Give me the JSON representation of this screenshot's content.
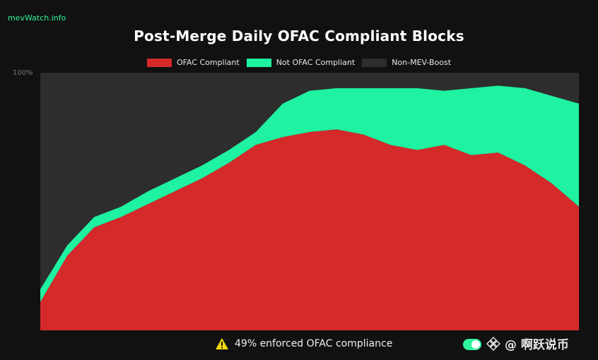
{
  "brand": "mevWatch.info",
  "footer": {
    "compliance_text": "49% enforced OFAC compliance",
    "watermark": "@ 啊跃说币"
  },
  "colors": {
    "ofac": "#d42a2a",
    "not_ofac": "#1ff2a0",
    "non_mev": "#2d2d2d",
    "background": "#111111",
    "accent": "#2ef39b",
    "warning": "#f5d90a"
  },
  "chart_data": {
    "type": "area",
    "stacked": true,
    "title": "Post-Merge Daily OFAC Compliant Blocks",
    "ylabel": "",
    "xlabel": "",
    "ylim": [
      0,
      100
    ],
    "y_tick_labels": [
      "100%"
    ],
    "grid": false,
    "legend_position": "top",
    "x": [
      0,
      10,
      20,
      30,
      40,
      50,
      60,
      70,
      80,
      90,
      100,
      110,
      120,
      130,
      140,
      150,
      160,
      170,
      180,
      190,
      200
    ],
    "series": [
      {
        "name": "OFAC Compliant",
        "color": "#d42a2a",
        "values": [
          11,
          29,
          40,
          44,
          49,
          54,
          59,
          65,
          72,
          75,
          77,
          78,
          76,
          72,
          70,
          72,
          68,
          69,
          64,
          57,
          48
        ]
      },
      {
        "name": "Not OFAC Compliant",
        "color": "#1ff2a0",
        "values": [
          5,
          4,
          4,
          4,
          5,
          5,
          5,
          5,
          5,
          13,
          16,
          16,
          18,
          22,
          24,
          21,
          26,
          26,
          30,
          34,
          40
        ]
      },
      {
        "name": "Non-MEV-Boost",
        "color": "#2d2d2d",
        "values": [
          84,
          67,
          56,
          52,
          46,
          41,
          36,
          30,
          23,
          12,
          7,
          6,
          6,
          6,
          6,
          7,
          6,
          5,
          6,
          9,
          12
        ]
      }
    ]
  }
}
